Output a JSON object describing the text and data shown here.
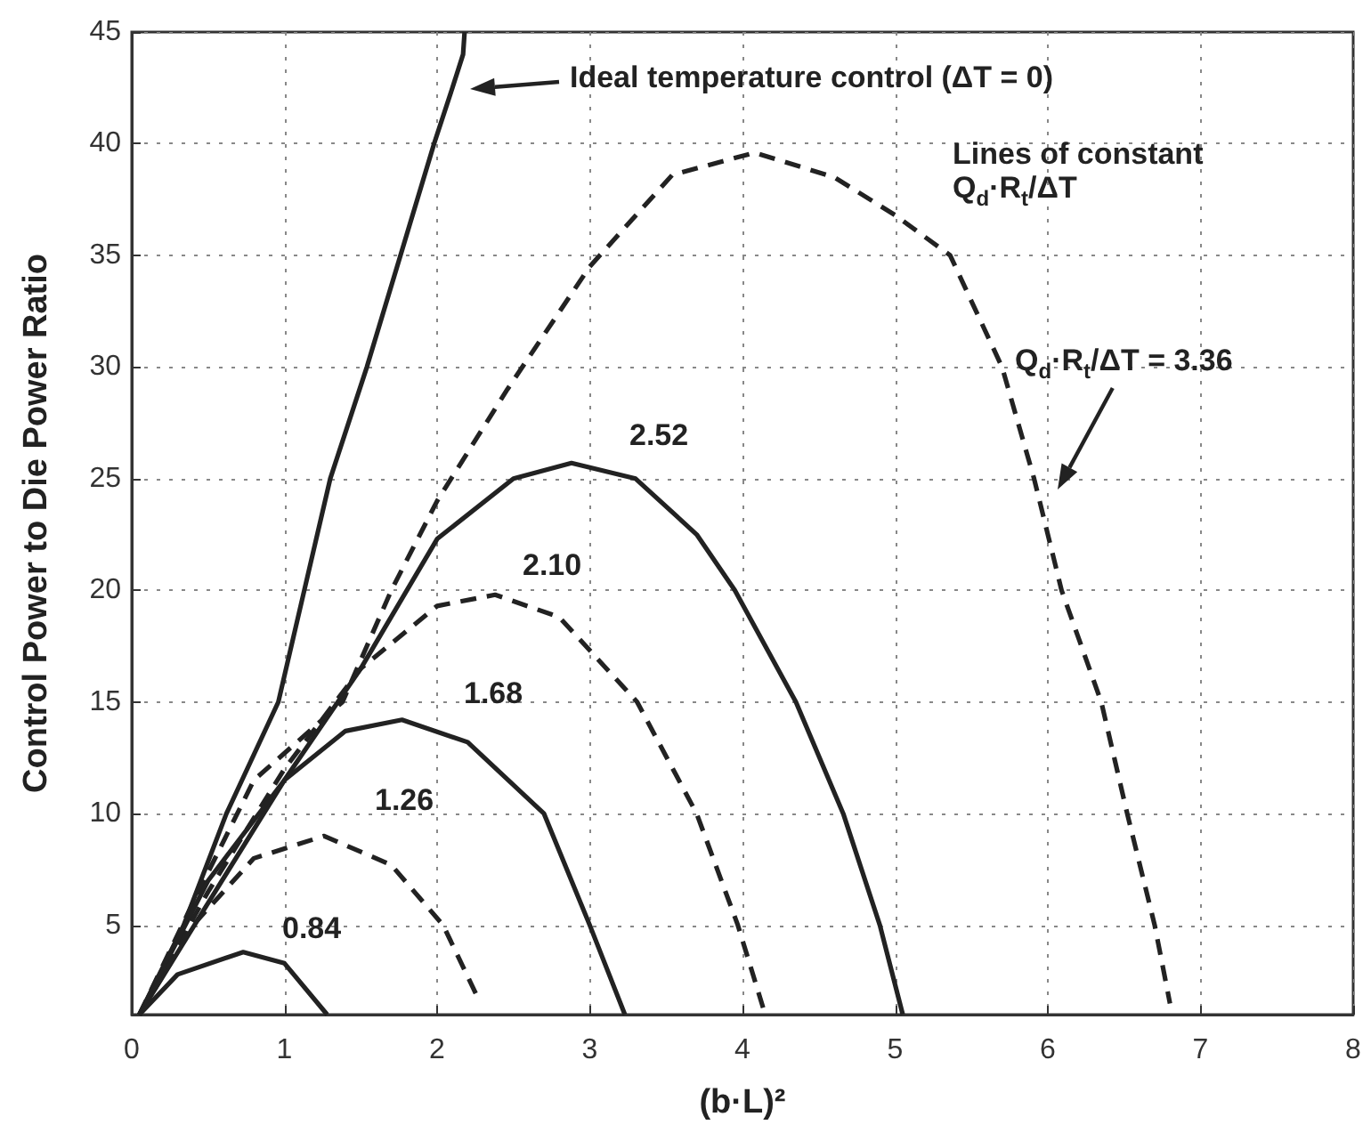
{
  "chart_data": {
    "type": "line",
    "xlabel": "(b·L)²",
    "ylabel": "Control Power to Die Power Ratio",
    "xlim": [
      0,
      8
    ],
    "xticks": [
      0,
      1,
      2,
      3,
      4,
      5,
      6,
      7,
      8
    ],
    "ylim": [
      1,
      45
    ],
    "yticks": [
      5,
      10,
      15,
      20,
      25,
      30,
      35,
      40,
      45
    ],
    "grid": true,
    "marker": "none",
    "annotations": [
      "Ideal temperature control (ΔT = 0)",
      "Lines of constant Q$_{d}$·R$_{t}$/ΔT",
      "Q$_{d}$·R$_{t}$/ΔT = 3.36",
      "2.52",
      "2.10",
      "1.68",
      "1.26",
      "0.84"
    ],
    "series": [
      {
        "color": "#222222",
        "line_style": "solid",
        "x": [
          0.05,
          0.34,
          0.62,
          0.96,
          1.13,
          1.3,
          1.54,
          1.76,
          1.98,
          2.1,
          2.17,
          2.18
        ],
        "values": [
          1,
          5,
          10,
          15,
          20,
          25,
          30,
          35,
          40,
          42.5,
          44,
          45
        ]
      },
      {
        "color": "#222222",
        "line_style": "dashed",
        "x": [
          0.05,
          0.4,
          0.8,
          1.38,
          1.7,
          2.0,
          2.46,
          3.0,
          3.54,
          4.08,
          4.6,
          5.0,
          5.36,
          5.7,
          5.91,
          6.09,
          6.35,
          6.52,
          6.7,
          6.8
        ],
        "values": [
          1,
          6,
          11.5,
          15,
          20,
          24,
          29,
          34.5,
          38.6,
          39.6,
          38.5,
          36.8,
          35,
          30,
          25,
          20,
          15,
          10,
          5,
          1.5
        ]
      },
      {
        "color": "#222222",
        "line_style": "solid",
        "x": [
          0.05,
          0.5,
          1.0,
          1.5,
          2.0,
          2.5,
          2.88,
          3.3,
          3.7,
          3.95,
          4.35,
          4.66,
          4.9,
          5.05
        ],
        "values": [
          1,
          6,
          11.5,
          16.5,
          22.3,
          25,
          25.7,
          25,
          22.5,
          20,
          15,
          10,
          5,
          1
        ]
      },
      {
        "color": "#222222",
        "line_style": "dashed",
        "x": [
          0.05,
          0.5,
          1.0,
          1.5,
          2.0,
          2.38,
          2.8,
          3.31,
          3.7,
          3.97,
          4.14
        ],
        "values": [
          1,
          6.5,
          12,
          16.5,
          19.3,
          19.8,
          18.8,
          15,
          10,
          5,
          1.2
        ]
      },
      {
        "color": "#222222",
        "line_style": "solid",
        "x": [
          0.05,
          0.5,
          1.0,
          1.4,
          1.77,
          2.2,
          2.7,
          3.0,
          3.23
        ],
        "values": [
          1,
          7,
          11.5,
          13.7,
          14.2,
          13.2,
          10,
          5,
          1
        ]
      },
      {
        "color": "#222222",
        "line_style": "dashed",
        "x": [
          0.05,
          0.4,
          0.8,
          1.26,
          1.7,
          2.04,
          2.27
        ],
        "values": [
          1,
          5,
          8,
          9,
          7.7,
          5,
          1.7
        ]
      },
      {
        "color": "#222222",
        "line_style": "solid",
        "x": [
          0.05,
          0.3,
          0.73,
          1.0,
          1.28
        ],
        "values": [
          1,
          2.8,
          3.8,
          3.3,
          1
        ]
      }
    ]
  }
}
